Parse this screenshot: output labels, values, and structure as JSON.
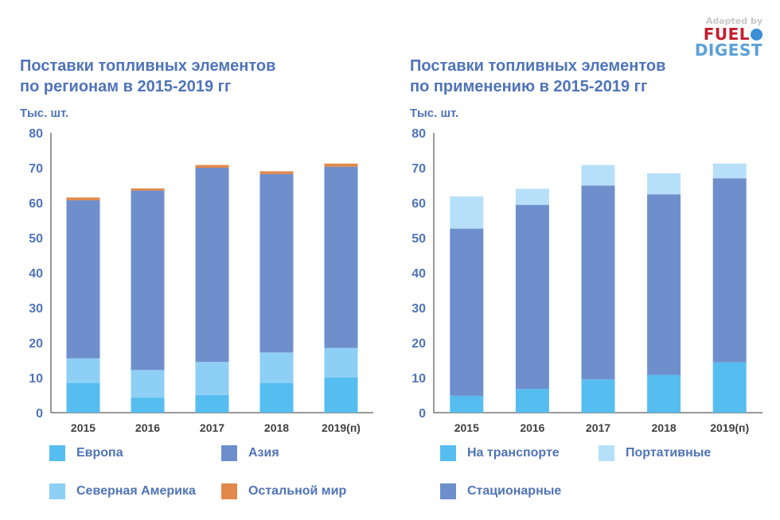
{
  "logo": {
    "adapted": "Adapted by",
    "fuel": "FUEL",
    "digest": "DIGEST"
  },
  "colors": {
    "europe": "#56bdf0",
    "asia": "#6e8fcc",
    "north_america": "#8ecff5",
    "rest": "#e0894a",
    "transport": "#56bdf0",
    "portable": "#b6e0fa",
    "stationary": "#6e8fcc",
    "axis_text": "#4f74b8"
  },
  "chart_data": [
    {
      "type": "bar",
      "stacked": true,
      "title": "Поставки топливных элементов\nпо регионам в 2015-2019 гг",
      "ylabel": "Тыс. шт.",
      "ylim": [
        0,
        80
      ],
      "yticks": [
        0,
        10,
        20,
        30,
        40,
        50,
        60,
        70,
        80
      ],
      "categories": [
        "2015",
        "2016",
        "2017",
        "2018",
        "2019(п)"
      ],
      "series": [
        {
          "name": "Европа",
          "color_key": "europe",
          "values": [
            8.5,
            4.3,
            5.0,
            8.5,
            10.0
          ]
        },
        {
          "name": "Северная Америка",
          "color_key": "north_america",
          "values": [
            7.0,
            7.9,
            9.5,
            8.7,
            8.5
          ]
        },
        {
          "name": "Азия",
          "color_key": "asia",
          "values": [
            45.2,
            51.3,
            55.5,
            51.0,
            51.8
          ]
        },
        {
          "name": "Остальной мир",
          "color_key": "rest",
          "values": [
            0.8,
            0.6,
            0.8,
            0.8,
            0.9
          ]
        }
      ],
      "legend": [
        "Европа",
        "Азия",
        "Северная Америка",
        "Остальной мир"
      ]
    },
    {
      "type": "bar",
      "stacked": true,
      "title": "Поставки топливных элементов\nпо применению в 2015-2019 гг",
      "ylabel": "Тыс. шт.",
      "ylim": [
        0,
        80
      ],
      "yticks": [
        0,
        10,
        20,
        30,
        40,
        50,
        60,
        70,
        80
      ],
      "categories": [
        "2015",
        "2016",
        "2017",
        "2018",
        "2019(п)"
      ],
      "series": [
        {
          "name": "На транспорте",
          "color_key": "transport",
          "values": [
            4.8,
            6.8,
            9.5,
            10.8,
            14.4
          ]
        },
        {
          "name": "Стационарные",
          "color_key": "stationary",
          "values": [
            47.8,
            52.6,
            55.4,
            51.6,
            52.6
          ]
        },
        {
          "name": "Портативные",
          "color_key": "portable",
          "values": [
            9.2,
            4.6,
            5.9,
            6.0,
            4.2
          ]
        }
      ],
      "legend": [
        "На транспорте",
        "Портативные",
        "Стационарные"
      ]
    }
  ]
}
